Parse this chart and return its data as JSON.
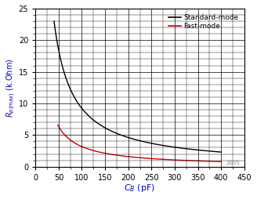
{
  "xlim": [
    0,
    450
  ],
  "ylim": [
    0,
    25
  ],
  "xticks": [
    0,
    50,
    100,
    150,
    200,
    250,
    300,
    350,
    400,
    450
  ],
  "yticks": [
    0,
    5,
    10,
    15,
    20,
    25
  ],
  "standard_color": "#000000",
  "fast_color": "#cc0000",
  "standard_label": "Standard-mode",
  "fast_label": "Fast-mode",
  "standard_k": 920,
  "fast_k": 316,
  "cb_start_standard": 40,
  "cb_start_fast": 48,
  "cb_end": 400,
  "background_color": "#ffffff",
  "grid_color": "#000000",
  "xlabel": "C_B (pF)",
  "ylabel": "R_p(max) (k.Ohm)",
  "xlabel_color": "#0000bb",
  "ylabel_color": "#0000bb",
  "watermark": "2005"
}
